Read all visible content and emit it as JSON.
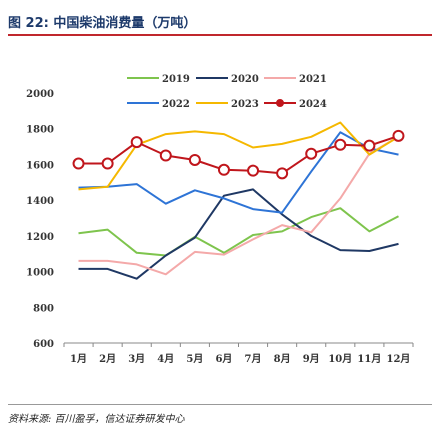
{
  "figure": {
    "title": "图 22:  中国柴油消费量（万吨）",
    "source": "资料来源:  百川盈孚，信达证券研发中心"
  },
  "chart_data": {
    "type": "line",
    "categories": [
      "1月",
      "2月",
      "3月",
      "4月",
      "5月",
      "6月",
      "7月",
      "8月",
      "9月",
      "10月",
      "11月",
      "12月"
    ],
    "ylim": [
      600,
      2000
    ],
    "yticks": [
      600,
      800,
      1000,
      1200,
      1400,
      1600,
      1800,
      2000
    ],
    "legend_position": "top",
    "grid": false,
    "series": [
      {
        "name": "2019",
        "color": "#7ec44d",
        "marker": false,
        "values": [
          1215,
          1235,
          1105,
          1090,
          1195,
          1105,
          1205,
          1225,
          1305,
          1355,
          1225,
          1310
        ]
      },
      {
        "name": "2020",
        "color": "#1f3864",
        "marker": false,
        "values": [
          1015,
          1015,
          960,
          1090,
          1190,
          1425,
          1460,
          1320,
          1200,
          1120,
          1115,
          1155
        ]
      },
      {
        "name": "2021",
        "color": "#f4a9a9",
        "marker": false,
        "values": [
          1060,
          1060,
          1040,
          985,
          1110,
          1095,
          1180,
          1260,
          1220,
          1410,
          1660,
          1755
        ]
      },
      {
        "name": "2022",
        "color": "#2e74d6",
        "marker": false,
        "values": [
          1470,
          1475,
          1490,
          1380,
          1455,
          1410,
          1350,
          1330,
          1560,
          1780,
          1690,
          1655
        ]
      },
      {
        "name": "2023",
        "color": "#f5b800",
        "marker": false,
        "values": [
          1460,
          1475,
          1710,
          1770,
          1785,
          1770,
          1695,
          1715,
          1755,
          1835,
          1655,
          1755
        ]
      },
      {
        "name": "2024",
        "color": "#c0161c",
        "marker": true,
        "values": [
          1605,
          1605,
          1725,
          1650,
          1625,
          1570,
          1565,
          1550,
          1660,
          1710,
          1705,
          1760
        ]
      }
    ]
  }
}
